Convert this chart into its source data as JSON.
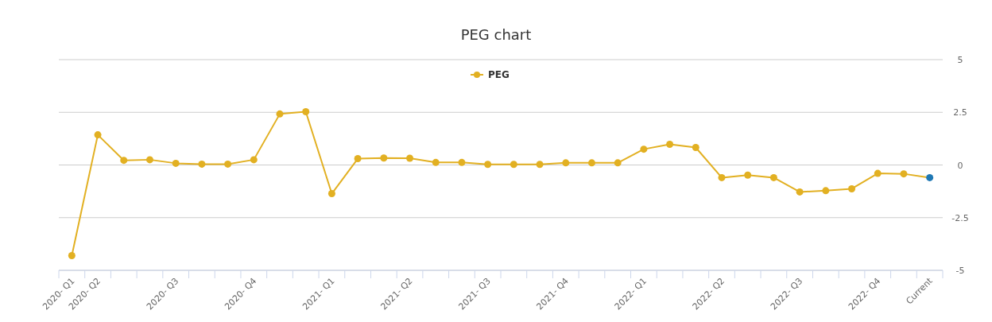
{
  "chart_data": {
    "type": "line",
    "title": "PEG chart",
    "categories": [
      "2020- Q1",
      "2020- Q2",
      null,
      null,
      "2020- Q3",
      null,
      null,
      "2020- Q4",
      null,
      null,
      "2021- Q1",
      null,
      null,
      "2021- Q2",
      null,
      null,
      "2021- Q3",
      null,
      null,
      "2021- Q4",
      null,
      null,
      "2022- Q1",
      null,
      null,
      "2022- Q2",
      null,
      null,
      "2022- Q3",
      null,
      null,
      "2022- Q4",
      null,
      "Current"
    ],
    "series": [
      {
        "name": "PEG",
        "color": "#e2b022",
        "colors": [
          "#e2b022",
          "#e2b022",
          "#e2b022",
          "#e2b022",
          "#e2b022",
          "#e2b022",
          "#e2b022",
          "#e2b022",
          "#e2b022",
          "#e2b022",
          "#e2b022",
          "#e2b022",
          "#e2b022",
          "#e2b022",
          "#e2b022",
          "#e2b022",
          "#e2b022",
          "#e2b022",
          "#e2b022",
          "#e2b022",
          "#e2b022",
          "#e2b022",
          "#e2b022",
          "#e2b022",
          "#e2b022",
          "#e2b022",
          "#e2b022",
          "#e2b022",
          "#e2b022",
          "#e2b022",
          "#e2b022",
          "#e2b022",
          "#e2b022",
          "#1f78b4"
        ],
        "values": [
          -4.3,
          1.43,
          0.22,
          0.25,
          0.08,
          0.04,
          0.04,
          0.25,
          2.42,
          2.53,
          -1.36,
          0.3,
          0.33,
          0.32,
          0.12,
          0.12,
          0.03,
          0.03,
          0.03,
          0.1,
          0.1,
          0.1,
          0.75,
          0.98,
          0.83,
          -0.6,
          -0.48,
          -0.6,
          -1.28,
          -1.22,
          -1.13,
          -0.4,
          -0.42,
          -0.6
        ]
      }
    ],
    "ylim": [
      -5,
      5
    ],
    "yticks": [
      -5,
      -2.5,
      0,
      2.5,
      5
    ],
    "grid": "y",
    "legend": "top",
    "marker": "circle",
    "line_style": "solid"
  }
}
